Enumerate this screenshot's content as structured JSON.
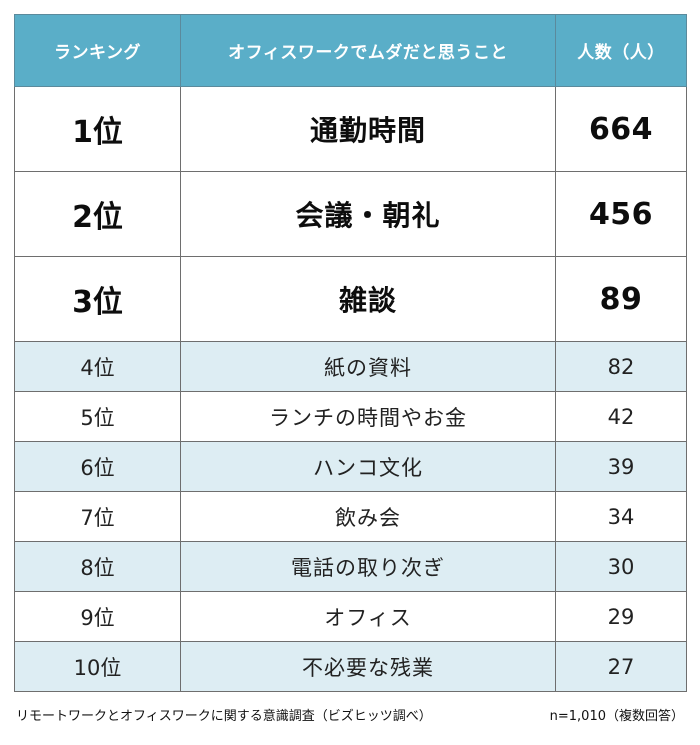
{
  "table": {
    "headers": {
      "rank": "ランキング",
      "item": "オフィスワークでムダだと思うこと",
      "count": "人数（人）"
    },
    "rows": [
      {
        "rank": "1位",
        "item": "通勤時間",
        "count": "664"
      },
      {
        "rank": "2位",
        "item": "会議・朝礼",
        "count": "456"
      },
      {
        "rank": "3位",
        "item": "雑談",
        "count": "89"
      },
      {
        "rank": "4位",
        "item": "紙の資料",
        "count": "82"
      },
      {
        "rank": "5位",
        "item": "ランチの時間やお金",
        "count": "42"
      },
      {
        "rank": "6位",
        "item": "ハンコ文化",
        "count": "39"
      },
      {
        "rank": "7位",
        "item": "飲み会",
        "count": "34"
      },
      {
        "rank": "8位",
        "item": "電話の取り次ぎ",
        "count": "30"
      },
      {
        "rank": "9位",
        "item": "オフィス",
        "count": "29"
      },
      {
        "rank": "10位",
        "item": "不必要な残業",
        "count": "27"
      }
    ]
  },
  "footer": {
    "source": "リモートワークとオフィスワークに関する意識調査（ビズヒッツ調べ）",
    "sample": "n=1,010（複数回答）"
  },
  "colors": {
    "header_bg": "#5aaec8",
    "header_text": "#ffffff",
    "shaded_row_bg": "#ddedf3",
    "border": "#6e6e6e"
  }
}
